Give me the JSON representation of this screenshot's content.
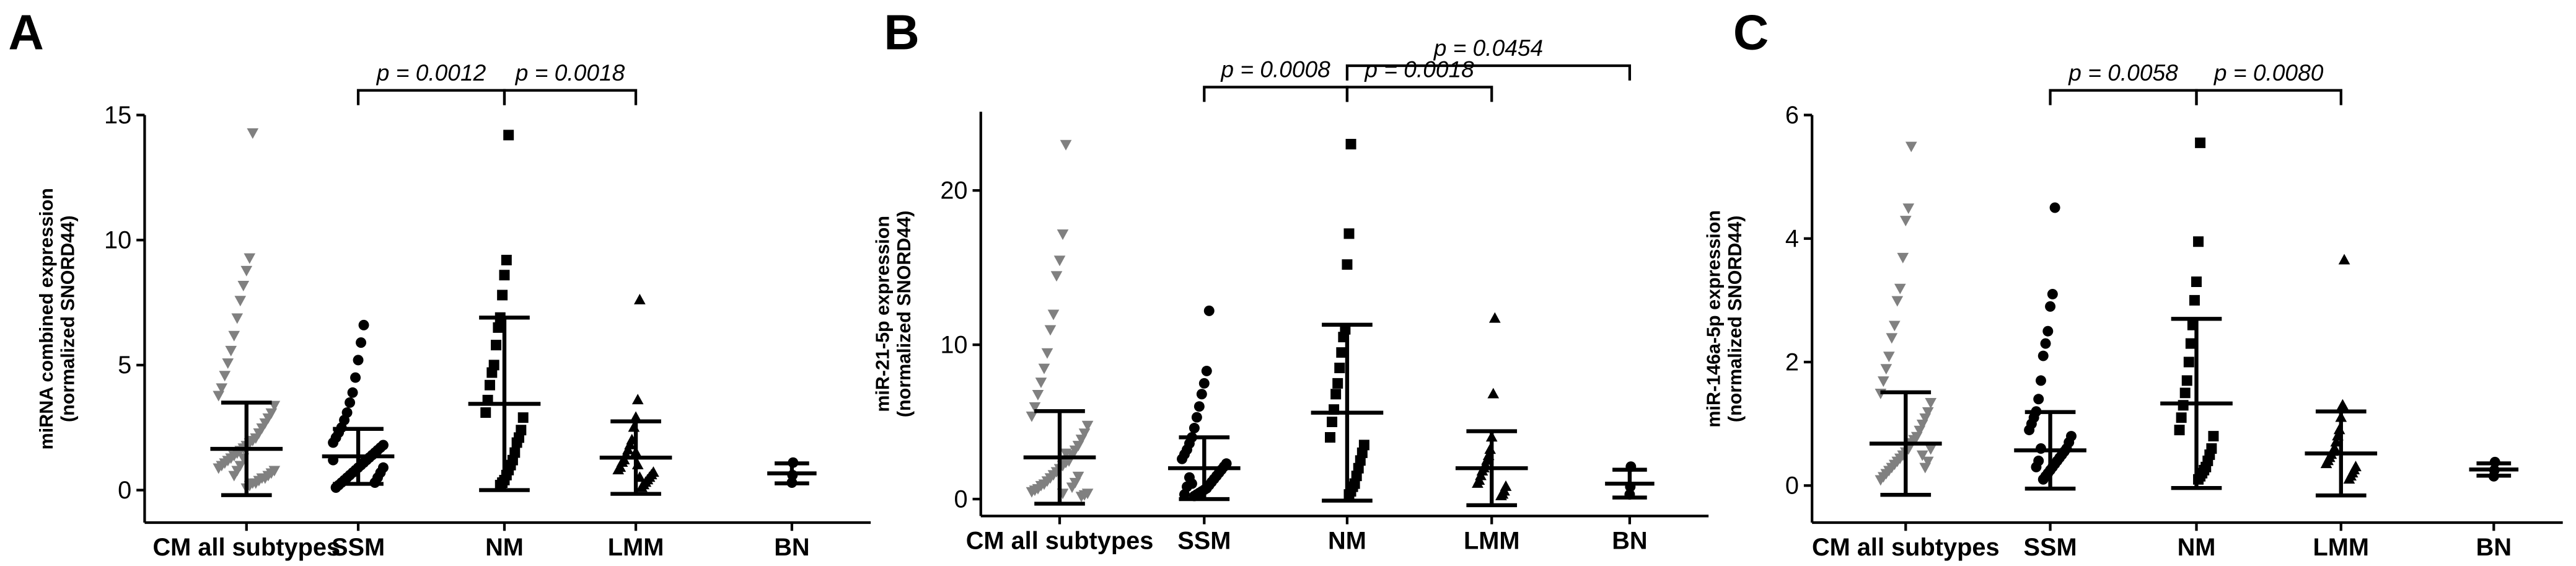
{
  "chart_data": [
    {
      "type": "dotplot",
      "panel": "A",
      "ylabel": [
        "miRNA combined expression",
        "(normalized SNORD44)"
      ],
      "categories": [
        "CM all subtypes",
        "SSM",
        "NM",
        "LMM",
        "BN"
      ],
      "ylim": [
        -1.3,
        15
      ],
      "yticks": [
        0,
        5,
        10,
        15
      ],
      "groups": [
        {
          "marker": "triangle-down",
          "color": "#808080",
          "mean": 1.65,
          "sd": 1.85,
          "values": [
            14.3,
            9.3,
            8.8,
            8.2,
            7.6,
            6.9,
            6.2,
            5.6,
            5.1,
            4.6,
            4.1,
            3.8,
            3.4,
            3.1,
            2.9,
            2.7,
            2.5,
            2.3,
            2.1,
            2.0,
            1.9,
            1.8,
            1.7,
            1.6,
            1.5,
            1.4,
            1.3,
            1.2,
            1.1,
            1.0,
            0.9,
            0.8,
            0.7,
            0.6,
            0.5,
            0.5,
            0.4,
            0.3,
            0.3,
            0.2,
            0.1,
            1.3,
            1.0,
            0.8,
            0.6
          ]
        },
        {
          "marker": "circle",
          "color": "#000000",
          "mean": 1.35,
          "sd": 1.1,
          "values": [
            6.6,
            5.9,
            5.2,
            4.5,
            3.9,
            3.5,
            3.1,
            2.8,
            2.5,
            2.3,
            2.1,
            1.9,
            1.8,
            1.7,
            1.6,
            1.5,
            1.4,
            1.3,
            1.2,
            1.1,
            1.0,
            0.9,
            0.8,
            0.7,
            0.6,
            0.5,
            0.4,
            0.3,
            0.2,
            0.1,
            1.2,
            0.9,
            0.7,
            0.5,
            0.3
          ]
        },
        {
          "marker": "square",
          "color": "#000000",
          "mean": 3.45,
          "sd": 3.45,
          "values": [
            14.2,
            9.2,
            8.6,
            7.8,
            6.9,
            6.5,
            5.8,
            5.0,
            4.7,
            4.2,
            3.6,
            3.1,
            2.9,
            2.4,
            2.1,
            1.9,
            1.5,
            1.2,
            1.0,
            0.8,
            0.6,
            0.4,
            0.3,
            0.2
          ]
        },
        {
          "marker": "triangle",
          "color": "#000000",
          "mean": 1.3,
          "sd": 1.45,
          "values": [
            7.6,
            3.6,
            2.9,
            2.5,
            2.0,
            1.8,
            1.6,
            1.4,
            1.2,
            1.1,
            0.9,
            0.8,
            0.7,
            0.6,
            0.5,
            0.4,
            0.3,
            0.2,
            0.1,
            0.5,
            1.0,
            1.5
          ]
        },
        {
          "marker": "circle",
          "color": "#000000",
          "mean": 0.67,
          "sd": 0.4,
          "values": [
            1.1,
            0.6,
            0.3
          ]
        }
      ],
      "comparisons": [
        {
          "between": [
            "SSM",
            "NM"
          ],
          "label": "p = 0.0012"
        },
        {
          "between": [
            "NM",
            "LMM"
          ],
          "label": "p = 0.0018"
        }
      ]
    },
    {
      "type": "dotplot",
      "panel": "B",
      "ylabel": [
        "miR-21-5p expression",
        "(normalized SNORD44)"
      ],
      "categories": [
        "CM all subtypes",
        "SSM",
        "NM",
        "LMM",
        "BN"
      ],
      "ylim": [
        -1.1,
        25.1
      ],
      "yticks": [
        0,
        10,
        20
      ],
      "groups": [
        {
          "marker": "triangle-down",
          "color": "#808080",
          "mean": 2.7,
          "sd": 3.0,
          "values": [
            23.0,
            17.2,
            15.5,
            14.5,
            12.0,
            11.0,
            9.5,
            8.5,
            7.6,
            6.8,
            6.0,
            5.4,
            4.8,
            4.3,
            3.9,
            3.5,
            3.2,
            2.9,
            2.6,
            2.4,
            2.2,
            2.0,
            1.8,
            1.6,
            1.4,
            1.2,
            1.0,
            0.9,
            0.7,
            0.6,
            0.5,
            0.4,
            0.3,
            0.2,
            1.5,
            1.1,
            0.8,
            2.5,
            3.0,
            0.4
          ]
        },
        {
          "marker": "circle",
          "color": "#000000",
          "mean": 2.0,
          "sd": 2.0,
          "values": [
            12.2,
            8.3,
            7.5,
            6.8,
            6.0,
            5.3,
            4.6,
            4.0,
            3.6,
            3.2,
            2.9,
            2.6,
            2.3,
            2.1,
            1.9,
            1.7,
            1.5,
            1.3,
            1.1,
            0.9,
            0.7,
            0.6,
            0.5,
            0.4,
            0.3,
            0.2,
            1.0,
            1.4,
            0.8,
            0.3
          ]
        },
        {
          "marker": "square",
          "color": "#000000",
          "mean": 5.6,
          "sd": 5.7,
          "values": [
            23.0,
            17.2,
            15.2,
            11.0,
            10.5,
            9.5,
            8.5,
            7.5,
            6.8,
            5.8,
            5.0,
            4.0,
            3.5,
            3.0,
            2.5,
            2.0,
            1.5,
            1.0,
            0.8,
            0.5,
            0.3
          ]
        },
        {
          "marker": "triangle",
          "color": "#000000",
          "mean": 2.0,
          "sd": 2.4,
          "values": [
            11.7,
            6.8,
            4.0,
            3.2,
            2.8,
            2.5,
            2.2,
            2.0,
            1.8,
            1.5,
            1.2,
            1.0,
            0.8,
            0.5,
            0.3,
            0.2
          ]
        },
        {
          "marker": "circle",
          "color": "#000000",
          "mean": 1.0,
          "sd": 0.9,
          "values": [
            2.1,
            0.8,
            0.3
          ]
        }
      ],
      "comparisons": [
        {
          "between": [
            "SSM",
            "NM"
          ],
          "label": "p = 0.0008"
        },
        {
          "between": [
            "NM",
            "LMM"
          ],
          "label": "p = 0.0018"
        },
        {
          "between": [
            "NM",
            "BN"
          ],
          "label": "p = 0.0454"
        }
      ]
    },
    {
      "type": "dotplot",
      "panel": "C",
      "ylabel": [
        "miR-146a-5p expression",
        "(normalized SNORD44)"
      ],
      "categories": [
        "CM all subtypes",
        "SSM",
        "NM",
        "LMM",
        "BN"
      ],
      "ylim": [
        -0.6,
        6
      ],
      "yticks": [
        0,
        2,
        4,
        6
      ],
      "groups": [
        {
          "marker": "triangle-down",
          "color": "#808080",
          "mean": 0.68,
          "sd": 0.83,
          "values": [
            5.5,
            4.5,
            4.3,
            3.7,
            3.2,
            3.0,
            2.6,
            2.4,
            2.1,
            1.9,
            1.7,
            1.5,
            1.35,
            1.2,
            1.1,
            1.0,
            0.9,
            0.8,
            0.75,
            0.7,
            0.6,
            0.55,
            0.5,
            0.45,
            0.4,
            0.35,
            0.3,
            0.25,
            0.2,
            0.15,
            0.1,
            0.6,
            0.4,
            0.3,
            0.5
          ]
        },
        {
          "marker": "circle",
          "color": "#000000",
          "mean": 0.57,
          "sd": 0.62,
          "values": [
            4.5,
            3.1,
            2.9,
            2.5,
            2.3,
            2.1,
            1.7,
            1.4,
            1.2,
            1.1,
            1.0,
            0.9,
            0.8,
            0.7,
            0.6,
            0.55,
            0.5,
            0.45,
            0.4,
            0.35,
            0.3,
            0.25,
            0.2,
            0.15,
            0.1,
            0.6,
            0.4,
            0.3
          ]
        },
        {
          "marker": "square",
          "color": "#000000",
          "mean": 1.33,
          "sd": 1.37,
          "values": [
            5.55,
            3.95,
            3.3,
            3.0,
            2.6,
            2.3,
            2.0,
            1.7,
            1.5,
            1.3,
            1.1,
            0.9,
            0.8,
            0.6,
            0.5,
            0.4,
            0.3,
            0.25,
            0.2,
            0.15,
            0.1
          ]
        },
        {
          "marker": "triangle",
          "color": "#000000",
          "mean": 0.52,
          "sd": 0.68,
          "values": [
            3.65,
            1.3,
            1.1,
            0.9,
            0.8,
            0.7,
            0.6,
            0.55,
            0.5,
            0.45,
            0.4,
            0.35,
            0.3,
            0.25,
            0.2,
            0.15,
            0.1
          ]
        },
        {
          "marker": "circle",
          "color": "#000000",
          "mean": 0.26,
          "sd": 0.1,
          "values": [
            0.38,
            0.25,
            0.15
          ]
        }
      ],
      "comparisons": [
        {
          "between": [
            "SSM",
            "NM"
          ],
          "label": "p = 0.0058"
        },
        {
          "between": [
            "NM",
            "LMM"
          ],
          "label": "p = 0.0080"
        }
      ]
    }
  ]
}
